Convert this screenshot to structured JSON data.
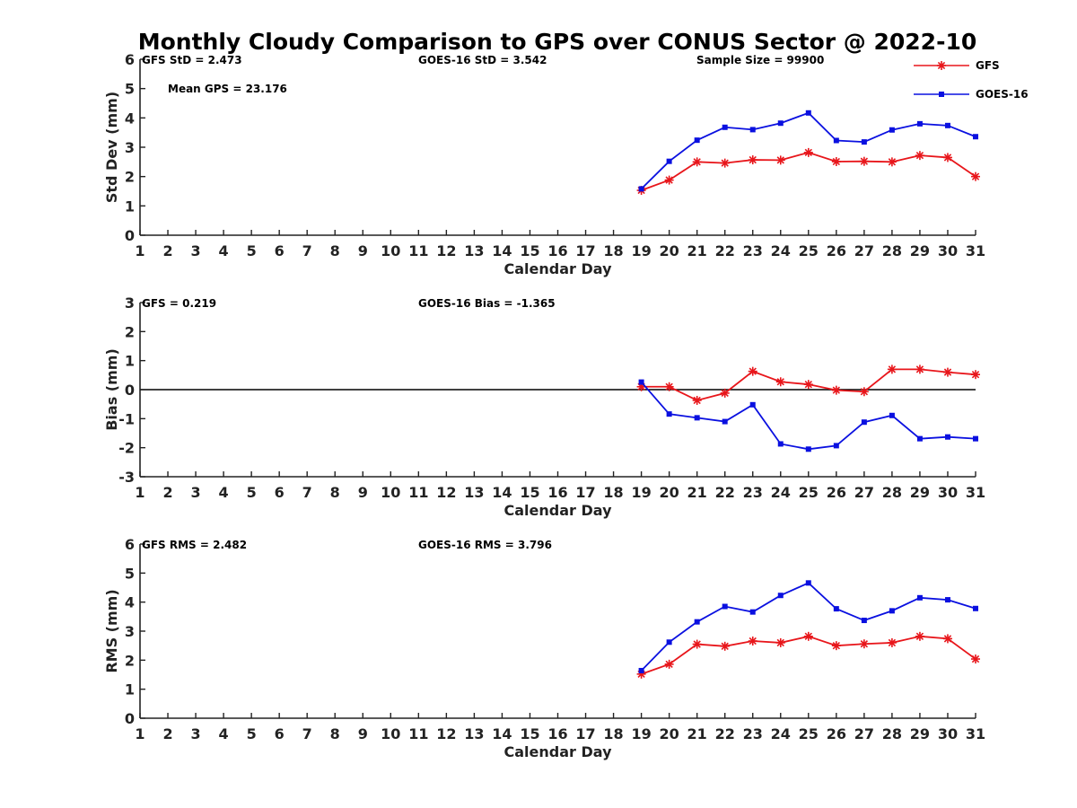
{
  "title": "Monthly Cloudy Comparison to GPS over CONUS Sector @ 2022-10",
  "legend": [
    {
      "name": "GFS",
      "color": "#e8161b",
      "marker": "asterisk"
    },
    {
      "name": "GOES-16",
      "color": "#0a10e0",
      "marker": "square"
    }
  ],
  "chart_data": [
    {
      "type": "line",
      "ylabel": "Std Dev (mm)",
      "xlabel": "Calendar Day",
      "ylim": [
        0,
        6
      ],
      "yticks": [
        0,
        1,
        2,
        3,
        4,
        5,
        6
      ],
      "xlim": [
        1,
        31
      ],
      "zero_line": false,
      "stats": [
        {
          "text": "GFS StD = 2.473",
          "pos": "top-left"
        },
        {
          "text": "GOES-16 StD = 3.542",
          "pos": "top-center"
        },
        {
          "text": "Sample Size = 99900",
          "pos": "top-right"
        },
        {
          "text": "Mean GPS = 23.176",
          "pos": "second-left"
        }
      ],
      "x": [
        19,
        20,
        21,
        22,
        23,
        24,
        25,
        26,
        27,
        28,
        29,
        30,
        31
      ],
      "series": [
        {
          "name": "GFS",
          "values": [
            1.53,
            1.88,
            2.5,
            2.46,
            2.57,
            2.56,
            2.82,
            2.51,
            2.52,
            2.5,
            2.72,
            2.65,
            2.0
          ]
        },
        {
          "name": "GOES-16",
          "values": [
            1.58,
            2.52,
            3.24,
            3.68,
            3.6,
            3.82,
            4.17,
            3.23,
            3.18,
            3.59,
            3.8,
            3.74,
            3.36
          ]
        }
      ]
    },
    {
      "type": "line",
      "ylabel": "Bias (mm)",
      "xlabel": "Calendar Day",
      "ylim": [
        -3,
        3
      ],
      "yticks": [
        -3,
        -2,
        -1,
        0,
        1,
        2,
        3
      ],
      "xlim": [
        1,
        31
      ],
      "zero_line": true,
      "stats": [
        {
          "text": "GFS = 0.219",
          "pos": "top-left"
        },
        {
          "text": "GOES-16 Bias = -1.365",
          "pos": "top-center"
        }
      ],
      "x": [
        19,
        20,
        21,
        22,
        23,
        24,
        25,
        26,
        27,
        28,
        29,
        30,
        31
      ],
      "series": [
        {
          "name": "GFS",
          "values": [
            0.1,
            0.1,
            -0.37,
            -0.12,
            0.63,
            0.27,
            0.18,
            -0.02,
            -0.07,
            0.7,
            0.7,
            0.6,
            0.52
          ]
        },
        {
          "name": "GOES-16",
          "values": [
            0.26,
            -0.84,
            -0.97,
            -1.1,
            -0.52,
            -1.87,
            -2.05,
            -1.93,
            -1.12,
            -0.89,
            -1.69,
            -1.63,
            -1.69
          ]
        }
      ]
    },
    {
      "type": "line",
      "ylabel": "RMS (mm)",
      "xlabel": "Calendar Day",
      "ylim": [
        0,
        6
      ],
      "yticks": [
        0,
        1,
        2,
        3,
        4,
        5,
        6
      ],
      "xlim": [
        1,
        31
      ],
      "zero_line": false,
      "stats": [
        {
          "text": "GFS RMS = 2.482",
          "pos": "top-left"
        },
        {
          "text": "GOES-16 RMS = 3.796",
          "pos": "top-center"
        }
      ],
      "x": [
        19,
        20,
        21,
        22,
        23,
        24,
        25,
        26,
        27,
        28,
        29,
        30,
        31
      ],
      "series": [
        {
          "name": "GFS",
          "values": [
            1.52,
            1.86,
            2.55,
            2.48,
            2.66,
            2.6,
            2.82,
            2.5,
            2.56,
            2.6,
            2.82,
            2.74,
            2.04
          ]
        },
        {
          "name": "GOES-16",
          "values": [
            1.64,
            2.62,
            3.32,
            3.85,
            3.66,
            4.23,
            4.66,
            3.77,
            3.37,
            3.7,
            4.15,
            4.08,
            3.78
          ]
        }
      ]
    }
  ]
}
